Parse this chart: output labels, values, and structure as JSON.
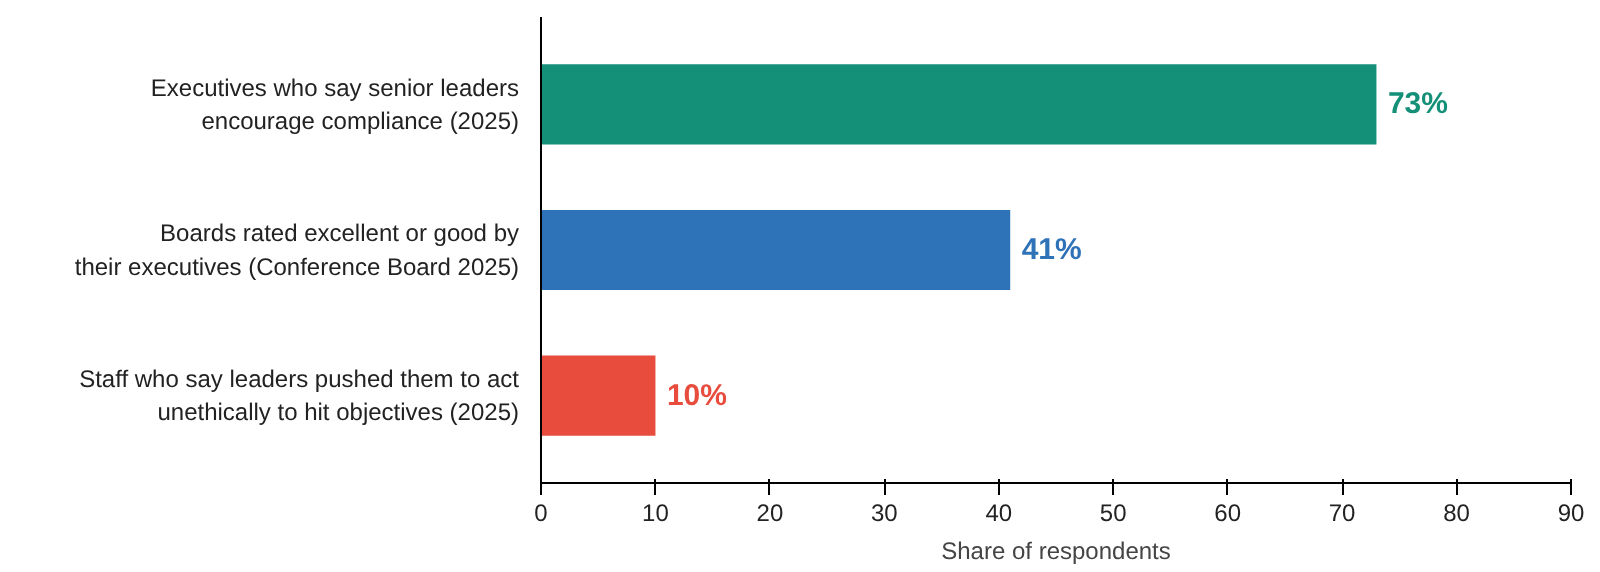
{
  "chart_data": {
    "type": "bar",
    "orientation": "horizontal",
    "xlabel": "Share of respondents",
    "categories": [
      "Executives who say senior leaders\nencourage compliance (2025)",
      "Boards rated excellent or good by\ntheir executives (Conference Board 2025)",
      "Staff who say leaders pushed them to act\nunethically to hit objectives (2025)"
    ],
    "values": [
      73,
      41,
      10
    ],
    "colors": [
      "#159078",
      "#2e72b8",
      "#e84c3d"
    ],
    "value_labels": [
      "73%",
      "41%",
      "10%"
    ],
    "xlim": [
      0,
      90
    ],
    "xticks": [
      0,
      10,
      20,
      30,
      40,
      50,
      60,
      70,
      80,
      90
    ],
    "grid": false
  }
}
